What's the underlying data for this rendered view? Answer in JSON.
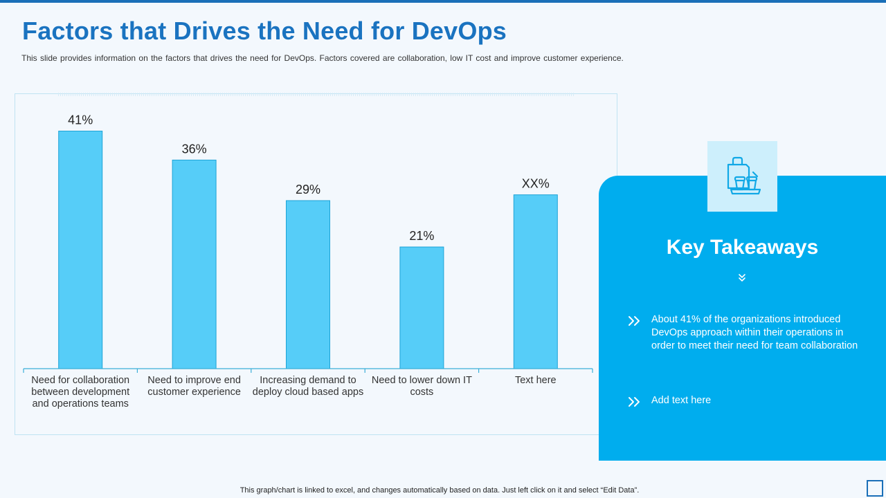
{
  "slide": {
    "title": "Factors that Drives the Need for DevOps",
    "subtitle": "This slide provides  information  on the factors that drives  the need for DevOps.  Factors covered  are collaboration, low IT cost and improve  customer experience.",
    "footer_note": "This graph/chart is linked to excel,  and changes automatically based on data. Just left click on it and select “Edit Data”."
  },
  "chart_data": {
    "type": "bar",
    "categories": [
      [
        "Need for collaboration",
        "between development",
        "and operations teams"
      ],
      [
        "Need to improve end",
        "customer experience"
      ],
      [
        "Increasing demand to",
        "deploy cloud based apps"
      ],
      [
        "Need to lower down IT",
        "costs"
      ],
      [
        "Text here"
      ]
    ],
    "values": [
      41,
      36,
      29,
      21,
      30
    ],
    "data_labels": [
      "41%",
      "36%",
      "29%",
      "21%",
      "XX%"
    ],
    "ylim": [
      0,
      45
    ],
    "bar_color": "#56cdf8",
    "bar_outline": "#1da3d6",
    "axis_color": "#3aaed8",
    "grid": false
  },
  "takeaways": {
    "title": "Key Takeaways",
    "icon": "shopping-bag-coffee-cups-icon",
    "points": [
      "About 41% of the organizations introduced DevOps approach within their operations in order to meet their need for team collaboration",
      "Add text here"
    ]
  },
  "colors": {
    "accent": "#1a73c0",
    "panel": "#00adee",
    "icon_box": "#cdeffc",
    "background": "#f3f8fd"
  }
}
